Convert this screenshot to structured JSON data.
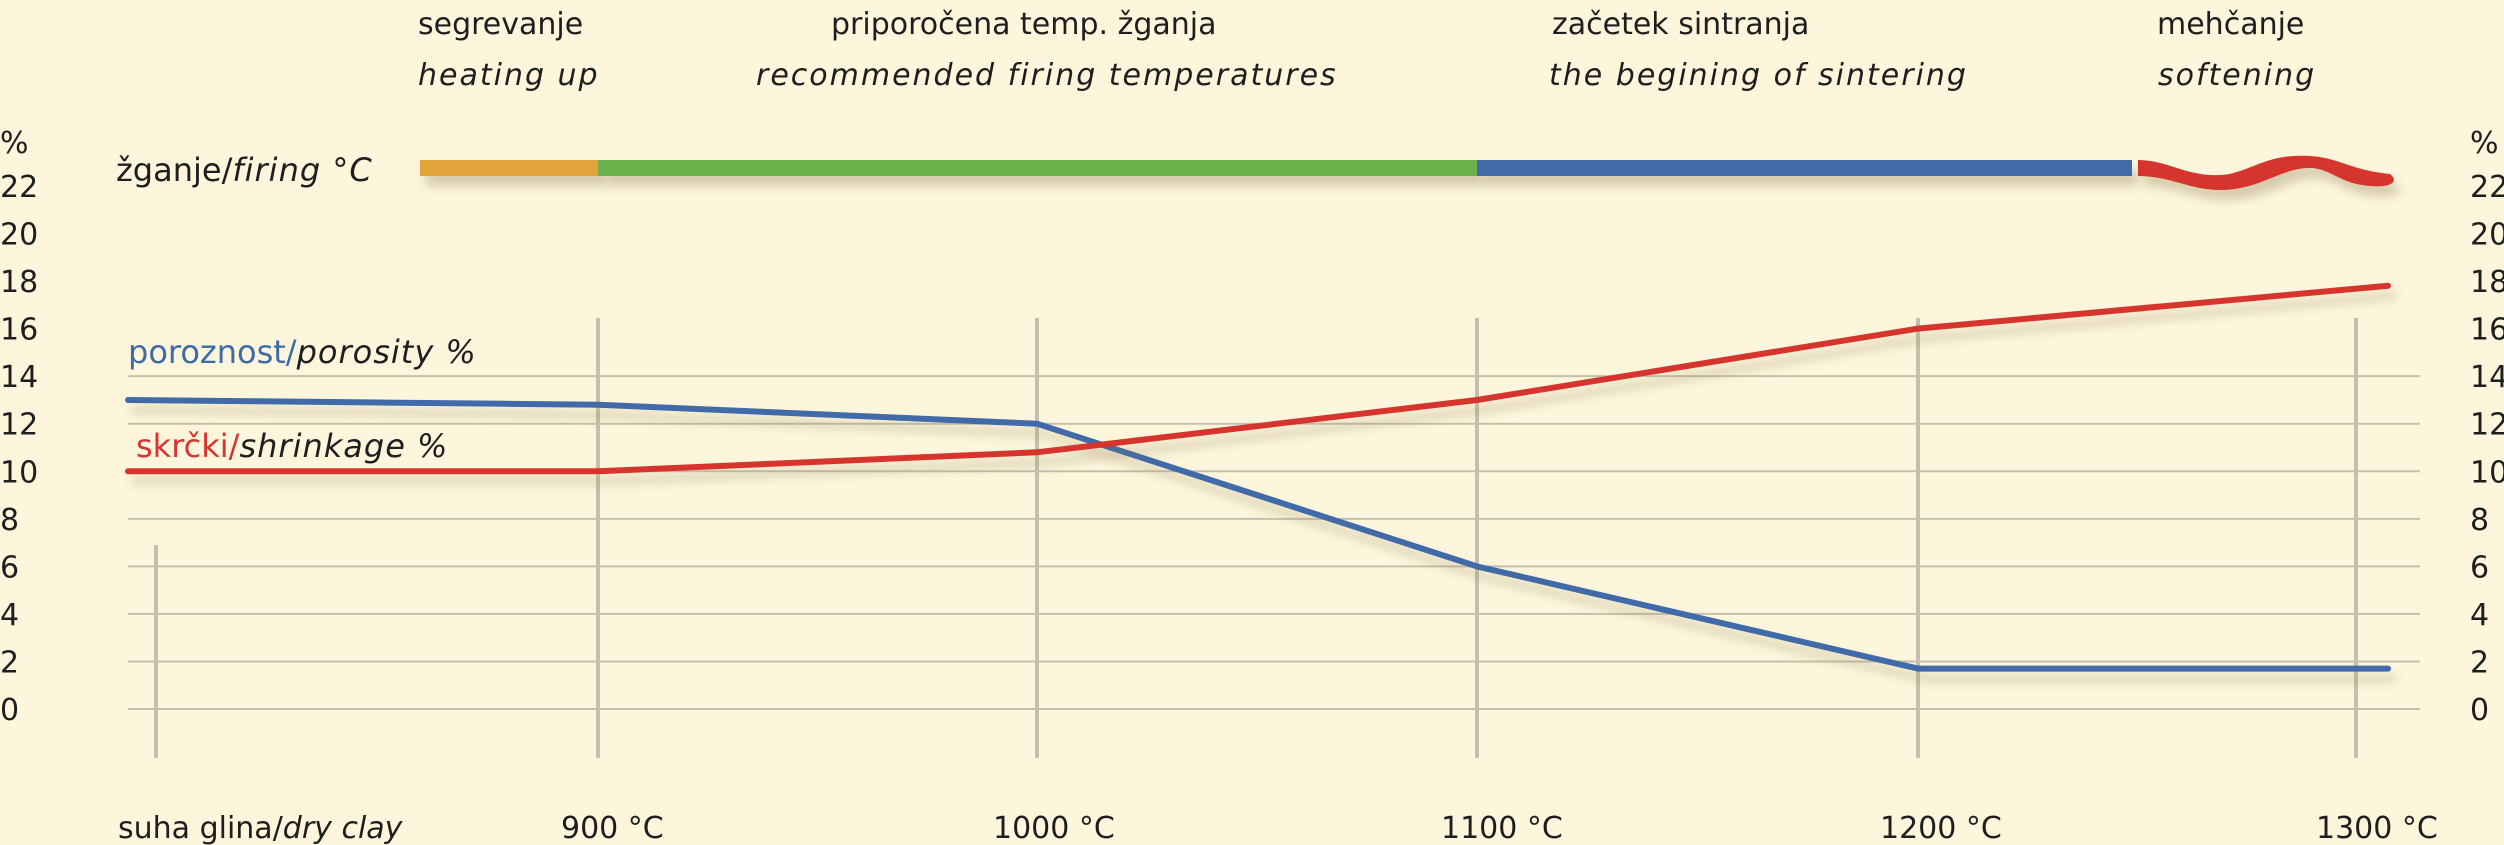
{
  "chart_data": {
    "type": "line",
    "x_labels": [
      "suha glina/dry clay",
      "900 °C",
      "1000 °C",
      "1100 °C",
      "1200 °C",
      "1300 °C"
    ],
    "x_label_parts": [
      {
        "plain": "suha glina/",
        "italic": "dry clay"
      },
      {
        "plain": "900 °C",
        "italic": ""
      },
      {
        "plain": "1000 °C",
        "italic": ""
      },
      {
        "plain": "1100 °C",
        "italic": ""
      },
      {
        "plain": "1200 °C",
        "italic": ""
      },
      {
        "plain": "1300 °C",
        "italic": ""
      }
    ],
    "y_unit": "%",
    "y_ticks": [
      0,
      2,
      4,
      6,
      8,
      10,
      12,
      14,
      16,
      18,
      20,
      22
    ],
    "ylim": [
      0,
      22
    ],
    "series": [
      {
        "name": "poroznost/porosity %",
        "label_plain": "poroznost/",
        "label_italic": "porosity %",
        "color": "#3f6aa8",
        "values": [
          13,
          12.8,
          12,
          6,
          1.7,
          1.7
        ]
      },
      {
        "name": "skrčki/shrinkage %",
        "label_plain": "skrčki/",
        "label_italic": "shrinkage %",
        "color": "#d6362f",
        "values": [
          10,
          10,
          10.8,
          13,
          16,
          17.8
        ]
      }
    ],
    "firing_bar": {
      "label_plain": "žganje/",
      "label_italic": "firing °C",
      "segments": [
        {
          "color": "#e3a43a",
          "from": 0,
          "to": 1
        },
        {
          "color": "#6ab04c",
          "from": 1,
          "to": 3
        },
        {
          "color": "#3f6aa8",
          "from": 3,
          "to": 4.5
        },
        {
          "color": "#d6362f",
          "from": 4.5,
          "to": 5.1
        }
      ]
    },
    "phases": [
      {
        "name": "segrevanje",
        "name_en": "heating up"
      },
      {
        "name": "priporočena temp. žganja",
        "name_en": "recommended firing temperatures"
      },
      {
        "name": "začetek sintranja",
        "name_en": "the begining of sintering"
      },
      {
        "name": "mehčanje",
        "name_en": "softening"
      }
    ],
    "grid": true
  }
}
